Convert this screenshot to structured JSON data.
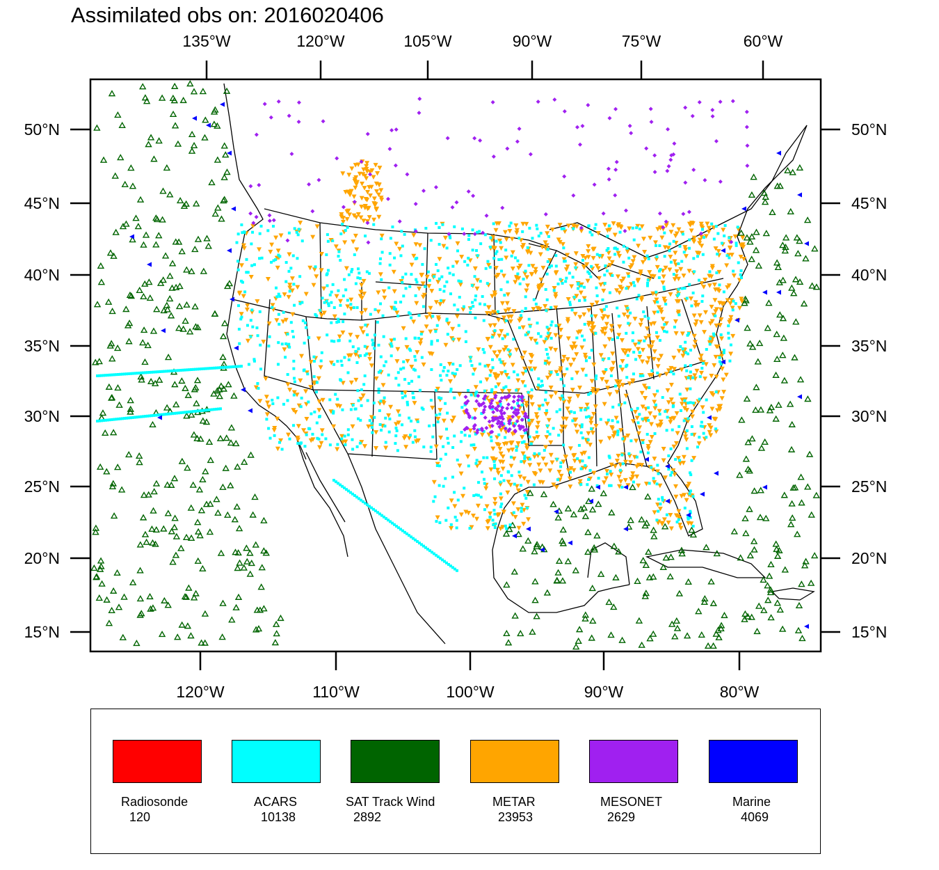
{
  "title": "Assimilated obs on: 2016020406",
  "axes": {
    "top_lon_labels": [
      "135°W",
      "120°W",
      "105°W",
      "90°W",
      "75°W",
      "60°W"
    ],
    "bottom_lon_labels": [
      "120°W",
      "110°W",
      "100°W",
      "90°W",
      "80°W"
    ],
    "left_lat_labels": [
      "50°N",
      "45°N",
      "40°N",
      "35°N",
      "30°N",
      "25°N",
      "20°N",
      "15°N"
    ],
    "right_lat_labels": [
      "50°N",
      "45°N",
      "40°N",
      "35°N",
      "30°N",
      "25°N",
      "20°N",
      "15°N"
    ]
  },
  "legend": [
    {
      "name": "Radiosonde",
      "count": "120",
      "color": "#ff0000"
    },
    {
      "name": "ACARS",
      "count": "10138",
      "color": "#00ffff"
    },
    {
      "name": "SAT Track Wind",
      "count": "2892",
      "color": "#006400"
    },
    {
      "name": "METAR",
      "count": "23953",
      "color": "#ffa500"
    },
    {
      "name": "MESONET",
      "count": "2629",
      "color": "#a020f0"
    },
    {
      "name": "Marine",
      "count": "4069",
      "color": "#0000ff"
    }
  ],
  "map_data": {
    "projection": "lambert-conformal",
    "extent_lon": [
      -128,
      -64
    ],
    "extent_lat": [
      14,
      53
    ],
    "symbols": {
      "ACARS": "square",
      "SAT Track Wind": "open-triangle",
      "METAR": "inverted-triangle",
      "MESONET": "diamond",
      "Marine": "left-triangle"
    }
  }
}
